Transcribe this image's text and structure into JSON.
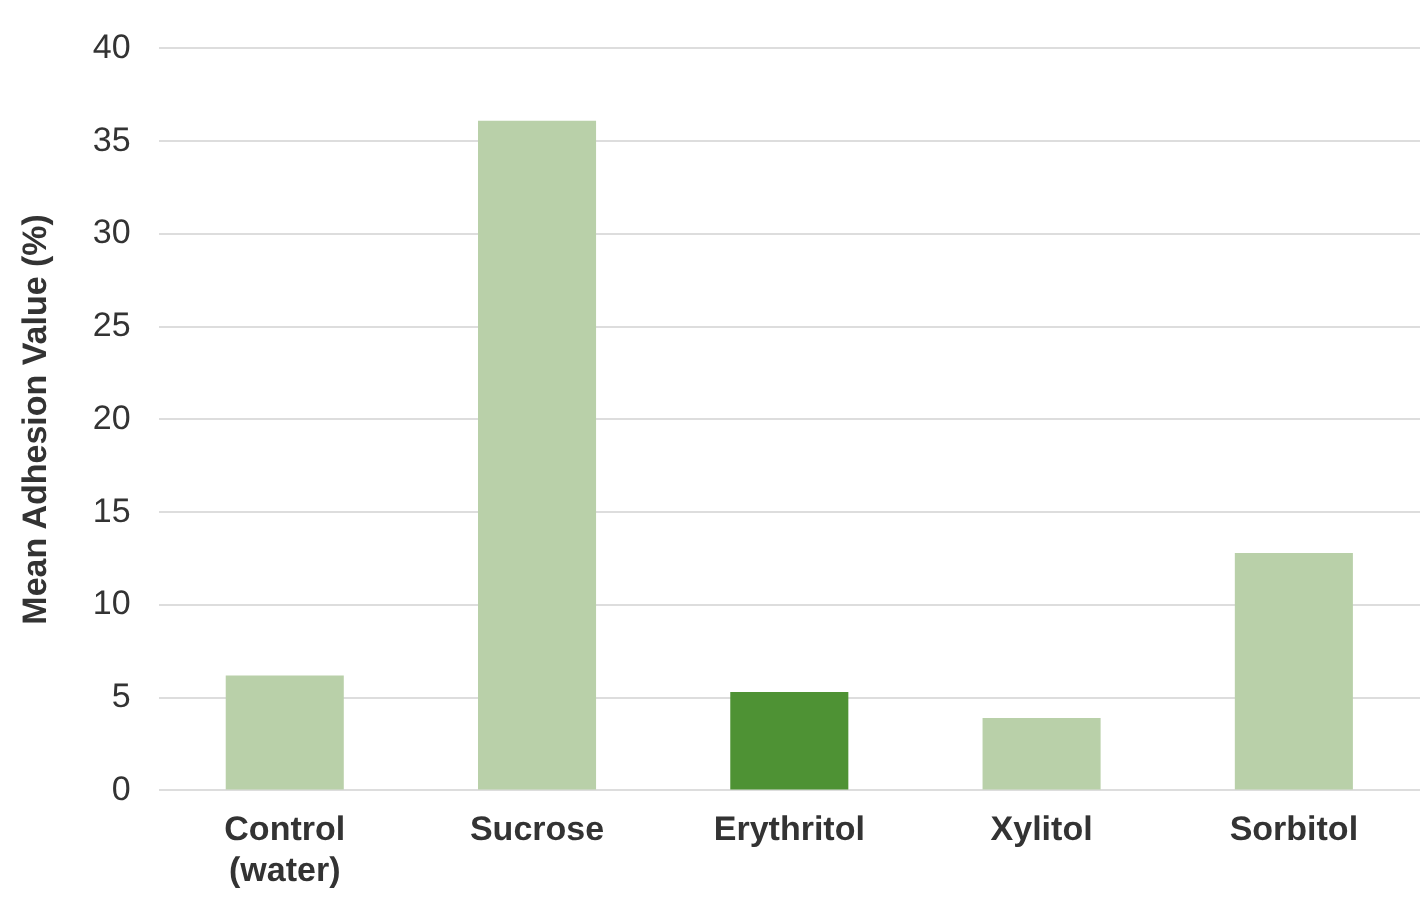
{
  "chart_data": {
    "type": "bar",
    "ylabel": "Mean Adhesion Value (%)",
    "categories": [
      "Control (water)",
      "Sucrose",
      "Erythritol",
      "Xylitol",
      "Sorbitol"
    ],
    "values": [
      6.2,
      36.1,
      5.3,
      3.9,
      12.8
    ],
    "colors": [
      "#b9d0a9",
      "#b9d0a9",
      "#4e9234",
      "#b9d0a9",
      "#b9d0a9"
    ],
    "ylim": [
      0,
      40
    ],
    "yticks": [
      0,
      5,
      10,
      15,
      20,
      25,
      30,
      35,
      40
    ],
    "grid": "y",
    "legend": false
  }
}
